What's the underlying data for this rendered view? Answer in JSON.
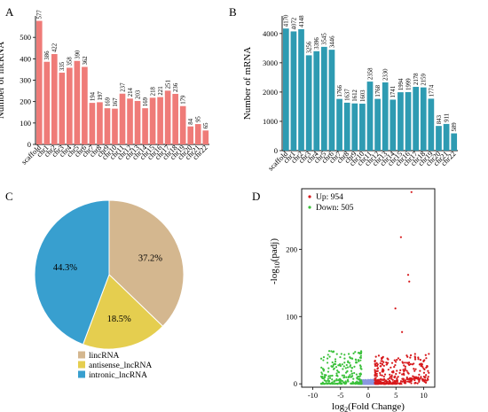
{
  "panels": [
    {
      "letter": "A"
    },
    {
      "letter": "B"
    },
    {
      "letter": "C"
    },
    {
      "letter": "D"
    }
  ],
  "chart_data": [
    {
      "panel": "A",
      "type": "bar",
      "ylabel": "Number of lncRNA",
      "xlabel": "",
      "ylim": [
        0,
        600
      ],
      "yticks": [
        0,
        100,
        200,
        300,
        400,
        500
      ],
      "bar_color": "#EF7B78",
      "show_value_labels": true,
      "categories": [
        "scaffold",
        "chr1",
        "chr2",
        "chr3",
        "chr4",
        "chr5",
        "chr6",
        "chr7",
        "chr8",
        "chr9",
        "chr10",
        "chr11",
        "chr12",
        "chr13",
        "chr14",
        "chr15",
        "chr16",
        "chr17",
        "chr18",
        "chr19",
        "chr20",
        "chr21",
        "chr22"
      ],
      "values": [
        577,
        386,
        422,
        335,
        358,
        390,
        362,
        194,
        197,
        169,
        167,
        237,
        214,
        203,
        169,
        218,
        221,
        251,
        236,
        179,
        84,
        95,
        65
      ]
    },
    {
      "panel": "B",
      "type": "bar",
      "ylabel": "Number of mRNA",
      "xlabel": "",
      "ylim": [
        0,
        4600
      ],
      "yticks": [
        0,
        1000,
        2000,
        3000,
        4000
      ],
      "bar_color": "#2E9BB2",
      "show_value_labels": true,
      "categories": [
        "scaffold",
        "chr1",
        "chr2",
        "chr3",
        "chr4",
        "chr5",
        "chr6",
        "chr7",
        "chr8",
        "chr9",
        "chr10",
        "chr11",
        "chr12",
        "chr13",
        "chr14",
        "chr15",
        "chr16",
        "chr17",
        "chr18",
        "chr19",
        "chr20",
        "chr21",
        "chr22"
      ],
      "values": [
        4170,
        4072,
        4148,
        3256,
        3396,
        3545,
        3446,
        1766,
        1637,
        1612,
        1603,
        2358,
        1768,
        2330,
        1741,
        1994,
        1999,
        2178,
        2159,
        1774,
        843,
        911,
        589
      ]
    },
    {
      "panel": "C",
      "type": "pie",
      "labels": [
        "lincRNA",
        "antisense_lncRNA",
        "intronic_lncRNA"
      ],
      "values": [
        37.2,
        18.5,
        44.3
      ],
      "value_labels": [
        "37.2%",
        "18.5%",
        "44.3%"
      ],
      "colors": [
        "#D4B78F",
        "#E5CE4F",
        "#389FCF"
      ],
      "legend_position": "bottom"
    },
    {
      "panel": "D",
      "type": "scatter",
      "xlabel_parts": [
        "log",
        "2",
        "(Fold Change)"
      ],
      "ylabel_parts": [
        "-log",
        "10",
        "(padj)"
      ],
      "xlim": [
        -12,
        12
      ],
      "ylim": [
        -5,
        290
      ],
      "xticks": [
        -10,
        -5,
        0,
        5,
        10
      ],
      "yticks": [
        0,
        100,
        200
      ],
      "legend_position": "top-left",
      "series": [
        {
          "name": "Up: 954",
          "color": "#D7191C"
        },
        {
          "name": "Down: 505",
          "color": "#3CC13C"
        },
        {
          "color": "#8A97E0"
        }
      ],
      "highlight_points": [
        [
          7.8,
          285
        ],
        [
          5.9,
          218
        ],
        [
          7.2,
          162
        ],
        [
          7.4,
          152
        ],
        [
          4.9,
          112
        ],
        [
          6.1,
          77
        ]
      ]
    }
  ]
}
